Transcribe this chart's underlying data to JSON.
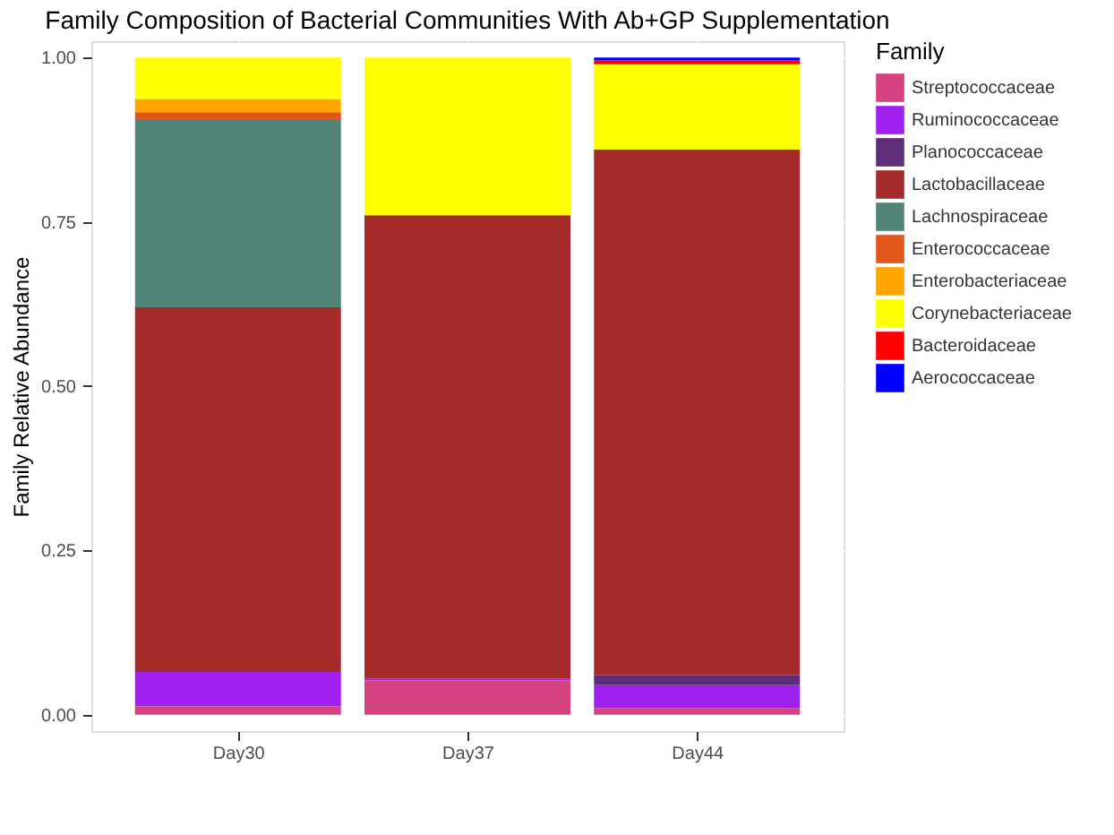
{
  "chart_data": {
    "type": "bar",
    "stacked": true,
    "title": "Family Composition of Bacterial Communities With Ab+GP Supplementation",
    "xlabel": null,
    "ylabel": "Family Relative Abundance",
    "legend_title": "Family",
    "categories": [
      "Day30",
      "Day37",
      "Day44"
    ],
    "series": [
      {
        "name": "Streptococcaceae",
        "color": "#d4427f",
        "values": [
          0.013,
          0.052,
          0.01
        ]
      },
      {
        "name": "Ruminococcaceae",
        "color": "#a020f0",
        "values": [
          0.052,
          0.003,
          0.035
        ]
      },
      {
        "name": "Planococcaceae",
        "color": "#5e2d79",
        "values": [
          0,
          0,
          0.015
        ]
      },
      {
        "name": "Lactobacillaceae",
        "color": "#a52a2a",
        "values": [
          0.555,
          0.705,
          0.8
        ]
      },
      {
        "name": "Lachnospiraceae",
        "color": "#528577",
        "values": [
          0.285,
          0,
          0
        ]
      },
      {
        "name": "Enterococcaceae",
        "color": "#e0561b",
        "values": [
          0.012,
          0,
          0
        ]
      },
      {
        "name": "Enterobacteriaceae",
        "color": "#ffa500",
        "values": [
          0.02,
          0,
          0
        ]
      },
      {
        "name": "Corynebacteriaceae",
        "color": "#ffff00",
        "values": [
          0.063,
          0.24,
          0.13
        ]
      },
      {
        "name": "Bacteroidaceae",
        "color": "#ff0000",
        "values": [
          0,
          0,
          0.006
        ]
      },
      {
        "name": "Aerococcaceae",
        "color": "#0000ff",
        "values": [
          0,
          0,
          0.004
        ]
      }
    ],
    "ylim": [
      -0.025,
      1.025
    ],
    "yticks": [
      {
        "value": 0,
        "label": "0.00"
      },
      {
        "value": 0.25,
        "label": "0.25"
      },
      {
        "value": 0.5,
        "label": "0.50"
      },
      {
        "value": 0.75,
        "label": "0.75"
      },
      {
        "value": 1,
        "label": "1.00"
      }
    ],
    "grid": true,
    "legend": "right"
  }
}
